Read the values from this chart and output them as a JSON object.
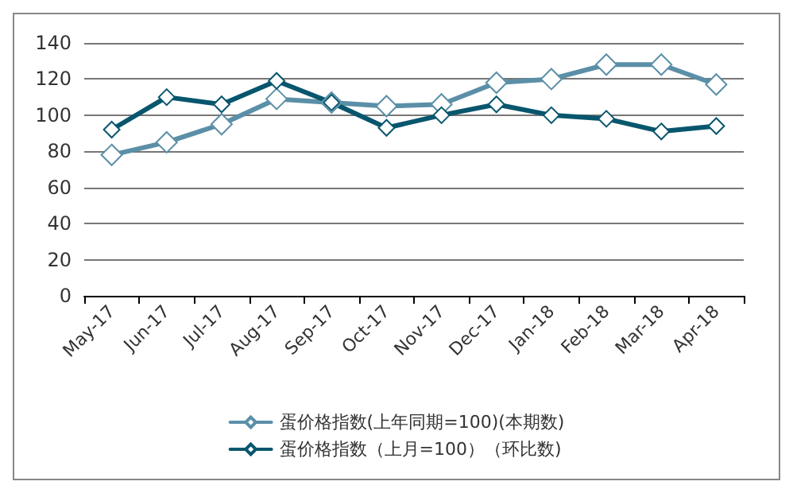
{
  "chart_data": {
    "type": "line",
    "categories": [
      "May-17",
      "Jun-17",
      "Jul-17",
      "Aug-17",
      "Sep-17",
      "Oct-17",
      "Nov-17",
      "Dec-17",
      "Jan-18",
      "Feb-18",
      "Mar-18",
      "Apr-18"
    ],
    "series": [
      {
        "name": "蛋价格指数(上年同期=100)(本期数)",
        "color": "#5b8fa8",
        "values": [
          78,
          85,
          95,
          109,
          107,
          105,
          106,
          118,
          120,
          128,
          128,
          117
        ]
      },
      {
        "name": "蛋价格指数（上月=100）（环比数)",
        "color": "#08566e",
        "values": [
          92,
          110,
          106,
          119,
          107,
          93,
          100,
          106,
          100,
          98,
          91,
          94
        ]
      }
    ],
    "ylim": [
      0,
      140
    ],
    "yticks": [
      0,
      20,
      40,
      60,
      80,
      100,
      120,
      140
    ],
    "grid": "y",
    "legend": "bottom",
    "marker": "diamond",
    "line_style": "solid"
  }
}
